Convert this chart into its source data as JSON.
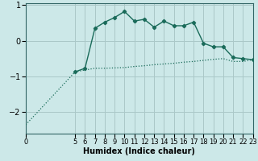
{
  "xlabel": "Humidex (Indice chaleur)",
  "background_color": "#cce8e8",
  "grid_color": "#aac8c8",
  "line_color": "#1a6b5a",
  "x_line1": [
    0,
    5,
    6,
    7,
    8,
    9,
    10,
    11,
    12,
    13,
    14,
    15,
    16,
    17,
    18,
    19,
    20,
    21,
    22,
    23
  ],
  "y_line1": [
    -2.35,
    -0.87,
    -0.82,
    -0.77,
    -0.77,
    -0.76,
    -0.75,
    -0.72,
    -0.7,
    -0.67,
    -0.65,
    -0.63,
    -0.6,
    -0.58,
    -0.55,
    -0.52,
    -0.5,
    -0.58,
    -0.58,
    -0.53
  ],
  "x_line2": [
    5,
    6,
    7,
    8,
    9,
    10,
    11,
    12,
    13,
    14,
    15,
    16,
    17,
    18,
    19,
    20,
    21,
    22,
    23
  ],
  "y_line2": [
    -0.87,
    -0.77,
    0.35,
    0.52,
    0.65,
    0.82,
    0.55,
    0.6,
    0.38,
    0.55,
    0.42,
    0.42,
    0.52,
    -0.07,
    -0.17,
    -0.17,
    -0.47,
    -0.5,
    -0.53
  ],
  "xlim": [
    0,
    23
  ],
  "ylim": [
    -2.6,
    1.05
  ],
  "yticks": [
    -2,
    -1,
    0,
    1
  ],
  "xticks": [
    0,
    5,
    6,
    7,
    8,
    9,
    10,
    11,
    12,
    13,
    14,
    15,
    16,
    17,
    18,
    19,
    20,
    21,
    22,
    23
  ],
  "fontsize_xlabel": 7,
  "fontsize_ytick": 7,
  "fontsize_xtick": 6
}
